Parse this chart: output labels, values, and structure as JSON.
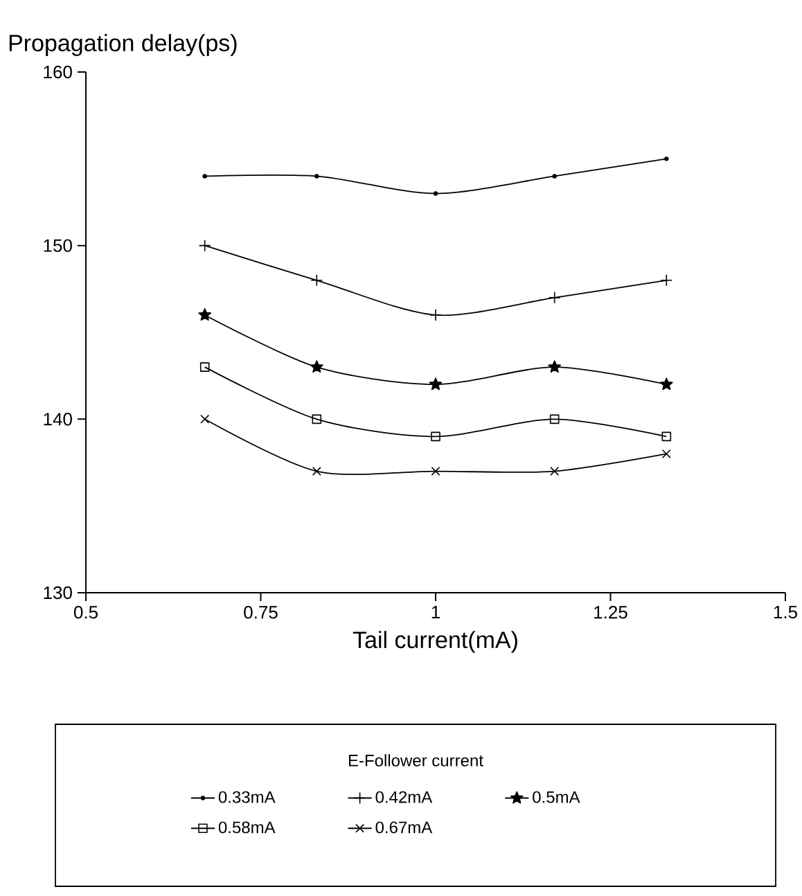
{
  "chart_data": {
    "type": "line",
    "ylabel": "Propagation delay(ps)",
    "xlabel": "Tail current(mA)",
    "legend_title": "E-Follower current",
    "legend": "bottom",
    "x": [
      0.67,
      0.83,
      1.0,
      1.17,
      1.33
    ],
    "xlim": [
      0.5,
      1.5
    ],
    "xticks": [
      0.5,
      0.75,
      1,
      1.25,
      1.5
    ],
    "ylim": [
      130,
      160
    ],
    "yticks": [
      130,
      140,
      150,
      160
    ],
    "grid": false,
    "line_style": "solid",
    "series": [
      {
        "name": "0.33mA",
        "color": "#000000",
        "marker": "circle",
        "values": [
          154,
          154,
          153,
          154,
          155
        ]
      },
      {
        "name": "0.42mA",
        "color": "#000000",
        "marker": "plus",
        "values": [
          150,
          148,
          146,
          147,
          148
        ]
      },
      {
        "name": "0.5mA",
        "color": "#000000",
        "marker": "star",
        "values": [
          146,
          143,
          142,
          143,
          142
        ]
      },
      {
        "name": "0.58mA",
        "color": "#000000",
        "marker": "square",
        "values": [
          143,
          140,
          139,
          140,
          139
        ]
      },
      {
        "name": "0.67mA",
        "color": "#000000",
        "marker": "cross",
        "values": [
          140,
          137,
          137,
          137,
          138
        ]
      }
    ]
  }
}
